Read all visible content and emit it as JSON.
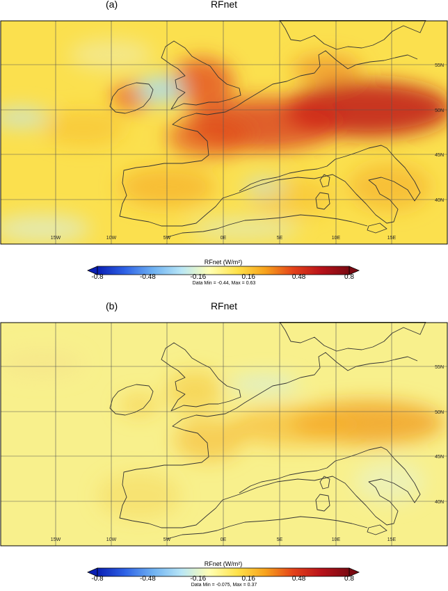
{
  "panels": [
    {
      "label": "(a)",
      "title": "RFnet",
      "colorbar": {
        "label": "RFnet (W/m²)",
        "ticks": [
          "-0.8",
          "-0.48",
          "-0.16",
          "0.16",
          "0.48",
          "0.8"
        ]
      },
      "data_range": "Data Min = -0.44, Max = 0.63",
      "intensity": 1.0
    },
    {
      "label": "(b)",
      "title": "RFnet",
      "colorbar": {
        "label": "RFnet (W/m²)",
        "ticks": [
          "-0.8",
          "-0.48",
          "-0.16",
          "0.16",
          "0.48",
          "0.8"
        ]
      },
      "data_range": "Data Min = -0.075, Max = 0.37",
      "intensity": 0.45
    }
  ],
  "map": {
    "lon_labels": [
      "15W",
      "10W",
      "5W",
      "0E",
      "5E",
      "10E",
      "15E"
    ],
    "lat_labels": [
      "55N",
      "50N",
      "45N",
      "40N"
    ]
  },
  "colormap": [
    "#0a1fb4",
    "#2f63e6",
    "#6fb2f2",
    "#b8e6f6",
    "#ffffb4",
    "#ffe24a",
    "#f7a21c",
    "#e4421a",
    "#b8121a",
    "#7a0a12"
  ]
}
